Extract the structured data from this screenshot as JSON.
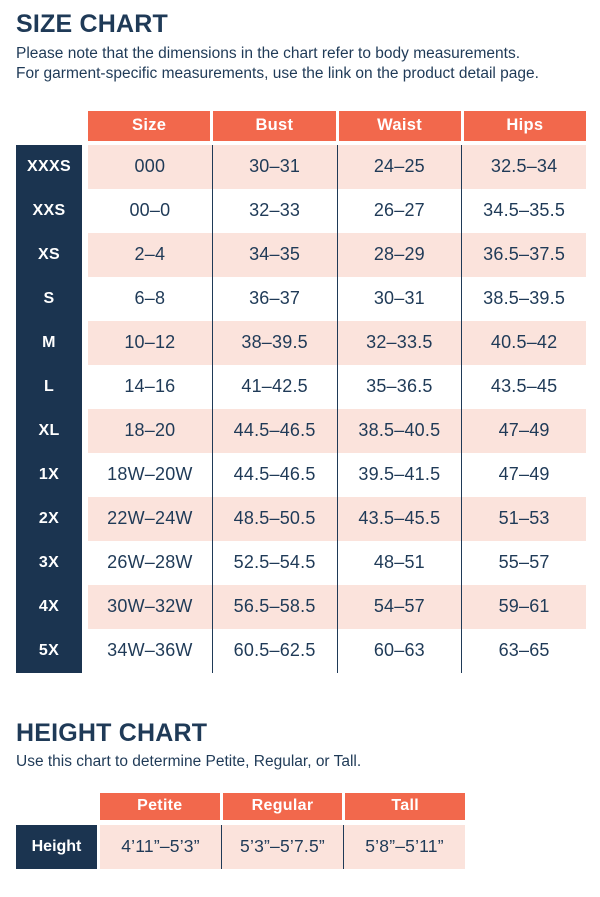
{
  "colors": {
    "coral": "#F2684C",
    "navy": "#1B3450",
    "pink": "#FBE3DC",
    "text": "#1F3A57"
  },
  "size_chart": {
    "title": "SIZE CHART",
    "subtitle_line1": "Please note that the dimensions in the chart refer to body measurements.",
    "subtitle_line2": "For garment-specific measurements, use the link on the product detail page.",
    "columns": [
      "Size",
      "Bust",
      "Waist",
      "Hips"
    ],
    "rows": [
      {
        "label": "XXXS",
        "size": "000",
        "bust": "30–31",
        "waist": "24–25",
        "hips": "32.5–34"
      },
      {
        "label": "XXS",
        "size": "00–0",
        "bust": "32–33",
        "waist": "26–27",
        "hips": "34.5–35.5"
      },
      {
        "label": "XS",
        "size": "2–4",
        "bust": "34–35",
        "waist": "28–29",
        "hips": "36.5–37.5"
      },
      {
        "label": "S",
        "size": "6–8",
        "bust": "36–37",
        "waist": "30–31",
        "hips": "38.5–39.5"
      },
      {
        "label": "M",
        "size": "10–12",
        "bust": "38–39.5",
        "waist": "32–33.5",
        "hips": "40.5–42"
      },
      {
        "label": "L",
        "size": "14–16",
        "bust": "41–42.5",
        "waist": "35–36.5",
        "hips": "43.5–45"
      },
      {
        "label": "XL",
        "size": "18–20",
        "bust": "44.5–46.5",
        "waist": "38.5–40.5",
        "hips": "47–49"
      },
      {
        "label": "1X",
        "size": "18W–20W",
        "bust": "44.5–46.5",
        "waist": "39.5–41.5",
        "hips": "47–49"
      },
      {
        "label": "2X",
        "size": "22W–24W",
        "bust": "48.5–50.5",
        "waist": "43.5–45.5",
        "hips": "51–53"
      },
      {
        "label": "3X",
        "size": "26W–28W",
        "bust": "52.5–54.5",
        "waist": "48–51",
        "hips": "55–57"
      },
      {
        "label": "4X",
        "size": "30W–32W",
        "bust": "56.5–58.5",
        "waist": "54–57",
        "hips": "59–61"
      },
      {
        "label": "5X",
        "size": "34W–36W",
        "bust": "60.5–62.5",
        "waist": "60–63",
        "hips": "63–65"
      }
    ]
  },
  "height_chart": {
    "title": "HEIGHT CHART",
    "subtitle": "Use this chart to determine Petite, Regular, or Tall.",
    "columns": [
      "Petite",
      "Regular",
      "Tall"
    ],
    "row_label": "Height",
    "values": [
      "4’11”–5’3”",
      "5’3”–5’7.5”",
      "5’8”–5’11”"
    ]
  }
}
